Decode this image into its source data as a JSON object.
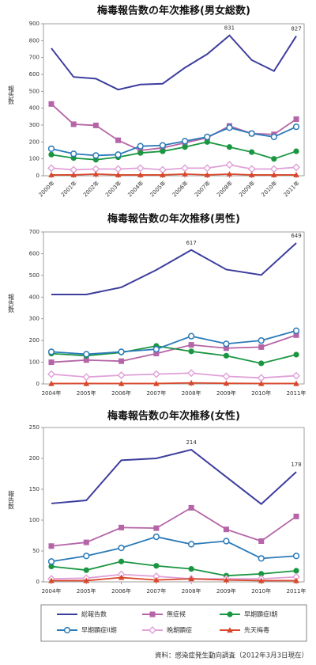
{
  "chart_data": [
    {
      "type": "line",
      "title": "梅毒報告数の年次推移(男女総数)",
      "ylabel": "報告数",
      "categories": [
        "2000年",
        "2001年",
        "2002年",
        "2003年",
        "2004年",
        "2005年",
        "2006年",
        "2007年",
        "2008年",
        "2009年",
        "2010年",
        "2011年"
      ],
      "ylim": [
        0,
        900
      ],
      "yticks": [
        0,
        100,
        200,
        300,
        400,
        500,
        600,
        700,
        800,
        900
      ],
      "rotate_x_labels": true,
      "series": [
        {
          "name": "総報告数",
          "color": "#3d3d9e",
          "marker": "none",
          "values": [
            755,
            585,
            575,
            510,
            540,
            545,
            640,
            720,
            831,
            685,
            620,
            827
          ],
          "label_points": [
            8,
            11
          ]
        },
        {
          "name": "無症候",
          "color": "#b565a7",
          "marker": "square",
          "values": [
            425,
            305,
            298,
            210,
            150,
            165,
            195,
            225,
            295,
            250,
            245,
            335
          ]
        },
        {
          "name": "早期顕症I期",
          "color": "#1a9641",
          "marker": "circle",
          "values": [
            125,
            105,
            95,
            110,
            135,
            145,
            170,
            200,
            170,
            140,
            100,
            145
          ]
        },
        {
          "name": "早期顕症II期",
          "color": "#2a7ab8",
          "marker": "circle-open",
          "values": [
            160,
            130,
            120,
            125,
            175,
            180,
            205,
            230,
            285,
            250,
            230,
            290
          ]
        },
        {
          "name": "晩期顕症",
          "color": "#e0a0d8",
          "marker": "diamond-open",
          "values": [
            45,
            35,
            40,
            40,
            45,
            35,
            45,
            45,
            65,
            40,
            40,
            50
          ]
        },
        {
          "name": "先天梅毒",
          "color": "#d9472b",
          "marker": "triangle",
          "values": [
            5,
            5,
            10,
            5,
            5,
            5,
            10,
            5,
            10,
            5,
            5,
            5
          ]
        }
      ]
    },
    {
      "type": "line",
      "title": "梅毒報告数の年次推移(男性)",
      "ylabel": "報告数",
      "categories": [
        "2004年",
        "2005年",
        "2006年",
        "2007年",
        "2008年",
        "2009年",
        "2010年",
        "2011年"
      ],
      "ylim": [
        0,
        700
      ],
      "yticks": [
        0,
        100,
        200,
        300,
        400,
        500,
        600,
        700
      ],
      "rotate_x_labels": false,
      "series": [
        {
          "name": "総報告数",
          "color": "#3d3d9e",
          "marker": "none",
          "values": [
            412,
            412,
            445,
            525,
            617,
            527,
            502,
            649
          ],
          "label_points": [
            4,
            7
          ]
        },
        {
          "name": "無症候",
          "color": "#b565a7",
          "marker": "square",
          "values": [
            100,
            110,
            105,
            140,
            180,
            165,
            170,
            225
          ]
        },
        {
          "name": "早期顕症I期",
          "color": "#1a9641",
          "marker": "circle",
          "values": [
            140,
            130,
            145,
            175,
            150,
            130,
            95,
            135
          ]
        },
        {
          "name": "早期顕症II期",
          "color": "#2a7ab8",
          "marker": "circle-open",
          "values": [
            148,
            137,
            148,
            160,
            220,
            185,
            200,
            245
          ]
        },
        {
          "name": "晩期顕症",
          "color": "#e0a0d8",
          "marker": "diamond-open",
          "values": [
            45,
            32,
            40,
            45,
            50,
            35,
            28,
            38
          ]
        },
        {
          "name": "先天梅毒",
          "color": "#d9472b",
          "marker": "triangle",
          "values": [
            2,
            2,
            2,
            2,
            5,
            3,
            2,
            2
          ]
        }
      ]
    },
    {
      "type": "line",
      "title": "梅毒報告数の年次推移(女性)",
      "ylabel": "報告数",
      "categories": [
        "2004年",
        "2005年",
        "2006年",
        "2007年",
        "2008年",
        "2009年",
        "2010年",
        "2011年"
      ],
      "ylim": [
        0,
        250
      ],
      "yticks": [
        0,
        50,
        100,
        150,
        200,
        250
      ],
      "rotate_x_labels": false,
      "series": [
        {
          "name": "総報告数",
          "color": "#3d3d9e",
          "marker": "none",
          "values": [
            127,
            132,
            197,
            200,
            214,
            170,
            126,
            178
          ],
          "label_points": [
            4,
            7
          ]
        },
        {
          "name": "無症候",
          "color": "#b565a7",
          "marker": "square",
          "values": [
            58,
            64,
            88,
            87,
            120,
            85,
            66,
            106
          ]
        },
        {
          "name": "早期顕症I期",
          "color": "#1a9641",
          "marker": "circle",
          "values": [
            25,
            19,
            33,
            26,
            21,
            10,
            13,
            18
          ]
        },
        {
          "name": "早期顕症II期",
          "color": "#2a7ab8",
          "marker": "circle-open",
          "values": [
            33,
            42,
            55,
            73,
            61,
            66,
            38,
            42
          ]
        },
        {
          "name": "晩期顕症",
          "color": "#e0a0d8",
          "marker": "diamond-open",
          "values": [
            5,
            6,
            12,
            9,
            5,
            5,
            5,
            8
          ]
        },
        {
          "name": "先天梅毒",
          "color": "#d9472b",
          "marker": "triangle",
          "values": [
            2,
            2,
            7,
            3,
            5,
            3,
            2,
            2
          ]
        }
      ]
    }
  ],
  "source": "資料：感染症発生動向調査（2012年3月3日現在）"
}
